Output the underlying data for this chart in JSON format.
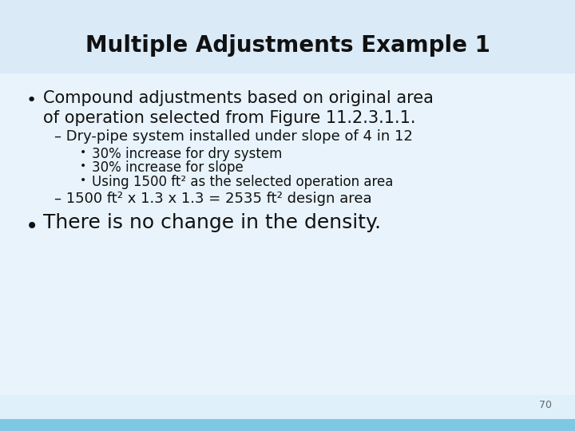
{
  "title": "Multiple Adjustments Example 1",
  "title_fontsize": 20,
  "title_color": "#111111",
  "bg_top": "#daeaf7",
  "bg_main": "#e8f3fb",
  "bg_bottom_stripe": "#7ec8e3",
  "page_number": "70",
  "bullet1_line1": "Compound adjustments based on original area",
  "bullet1_line2": "of operation selected from Figure 11.2.3.1.1.",
  "bullet1_fontsize": 15,
  "sub1": "– Dry-pipe system installed under slope of 4 in 12",
  "sub1_fontsize": 13,
  "sub2_items": [
    "30% increase for dry system",
    "30% increase for slope",
    "Using 1500 ft² as the selected operation area"
  ],
  "sub2_fontsize": 12,
  "sub3": "– 1500 ft² x 1.3 x 1.3 = 2535 ft² design area",
  "sub3_fontsize": 13,
  "bullet2": "There is no change in the density.",
  "bullet2_fontsize": 18,
  "text_color": "#111111"
}
